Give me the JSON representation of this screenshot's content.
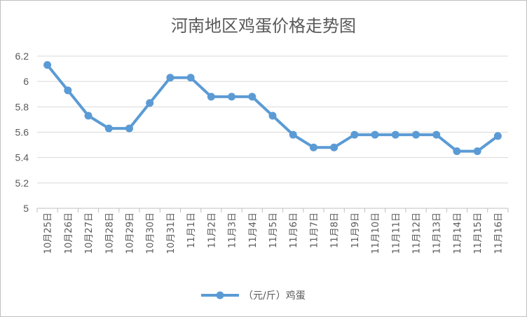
{
  "chart_data": {
    "type": "line",
    "title": "河南地区鸡蛋价格走势图",
    "xlabel": "",
    "ylabel": "",
    "categories": [
      "10月25日",
      "10月26日",
      "10月27日",
      "10月28日",
      "10月29日",
      "10月30日",
      "10月31日",
      "11月1日",
      "11月2日",
      "11月3日",
      "11月4日",
      "11月5日",
      "11月6日",
      "11月7日",
      "11月8日",
      "11月9日",
      "11月10日",
      "11月11日",
      "11月12日",
      "11月13日",
      "11月14日",
      "11月15日",
      "11月16日"
    ],
    "series": [
      {
        "name": "（元/斤）鸡蛋",
        "color": "#5b9bd5",
        "values": [
          6.13,
          5.93,
          5.73,
          5.63,
          5.63,
          5.83,
          6.03,
          6.03,
          5.88,
          5.88,
          5.88,
          5.73,
          5.58,
          5.48,
          5.48,
          5.58,
          5.58,
          5.58,
          5.58,
          5.58,
          5.45,
          5.45,
          5.57
        ]
      }
    ],
    "ylim": [
      5,
      6.2
    ],
    "yticks": [
      "5",
      "5.2",
      "5.4",
      "5.6",
      "5.8",
      "6",
      "6.2"
    ],
    "grid": true,
    "legend_position": "bottom"
  }
}
